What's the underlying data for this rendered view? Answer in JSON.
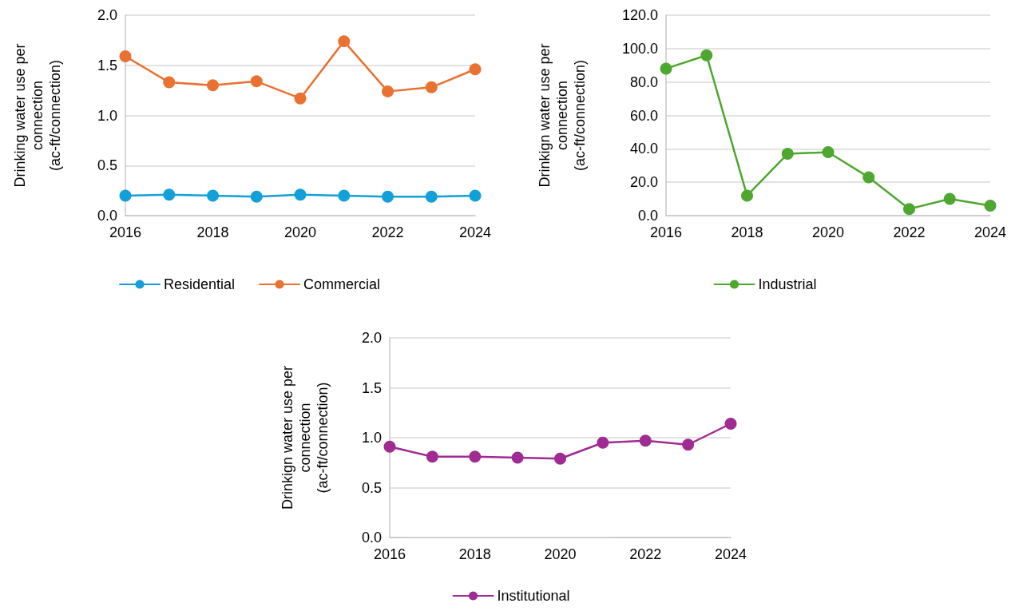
{
  "chart_data": [
    {
      "type": "line",
      "ylabel": "Drinking water use per connection (ac-ft/connection)",
      "x": [
        2016,
        2017,
        2018,
        2019,
        2020,
        2021,
        2022,
        2023,
        2024
      ],
      "xlim": [
        2016,
        2024
      ],
      "xticks": [
        2016,
        2018,
        2020,
        2022,
        2024
      ],
      "ylim": [
        0,
        2
      ],
      "yticks": [
        {
          "value": 0,
          "label": "0.0"
        },
        {
          "value": 0.5,
          "label": "0.5"
        },
        {
          "value": 1,
          "label": "1.0"
        },
        {
          "value": 1.5,
          "label": "1.5"
        },
        {
          "value": 2,
          "label": "2.0"
        }
      ],
      "grid": "y",
      "legend": "bottom",
      "marker": "circle",
      "line_style": "solid",
      "series": [
        {
          "name": "Residential",
          "color": "#13a0d8",
          "values": [
            0.2,
            0.21,
            0.2,
            0.19,
            0.21,
            0.2,
            0.19,
            0.19,
            0.2
          ]
        },
        {
          "name": "Commercial",
          "color": "#e97132",
          "values": [
            1.59,
            1.33,
            1.3,
            1.34,
            1.17,
            1.74,
            1.24,
            1.28,
            1.46
          ]
        }
      ]
    },
    {
      "type": "line",
      "ylabel": "Drinkign water use per connection (ac-ft/connection)",
      "x": [
        2016,
        2017,
        2018,
        2019,
        2020,
        2021,
        2022,
        2023,
        2024
      ],
      "xlim": [
        2016,
        2024
      ],
      "xticks": [
        2016,
        2018,
        2020,
        2022,
        2024
      ],
      "ylim": [
        0,
        120
      ],
      "yticks": [
        {
          "value": 0,
          "label": "0.0"
        },
        {
          "value": 20,
          "label": "20.0"
        },
        {
          "value": 40,
          "label": "40.0"
        },
        {
          "value": 60,
          "label": "60.0"
        },
        {
          "value": 80,
          "label": "80.0"
        },
        {
          "value": 100,
          "label": "100.0"
        },
        {
          "value": 120,
          "label": "120.0"
        }
      ],
      "grid": "y",
      "legend": "bottom",
      "marker": "circle",
      "line_style": "solid",
      "series": [
        {
          "name": "Industrial",
          "color": "#4ea72e",
          "values": [
            88,
            96,
            12,
            37,
            38,
            23,
            4,
            10,
            6
          ]
        }
      ]
    },
    {
      "type": "line",
      "ylabel": "Drinkign water use per connection (ac-ft/connection)",
      "x": [
        2016,
        2017,
        2018,
        2019,
        2020,
        2021,
        2022,
        2023,
        2024
      ],
      "xlim": [
        2016,
        2024
      ],
      "xticks": [
        2016,
        2018,
        2020,
        2022,
        2024
      ],
      "ylim": [
        0,
        2
      ],
      "yticks": [
        {
          "value": 0,
          "label": "0.0"
        },
        {
          "value": 0.5,
          "label": "0.5"
        },
        {
          "value": 1,
          "label": "1.0"
        },
        {
          "value": 1.5,
          "label": "1.5"
        },
        {
          "value": 2,
          "label": "2.0"
        }
      ],
      "grid": "y",
      "legend": "bottom",
      "marker": "circle",
      "line_style": "solid",
      "series": [
        {
          "name": "Institutional",
          "color": "#a02b93",
          "values": [
            0.91,
            0.81,
            0.81,
            0.8,
            0.79,
            0.95,
            0.97,
            0.93,
            1.14
          ]
        }
      ]
    }
  ]
}
